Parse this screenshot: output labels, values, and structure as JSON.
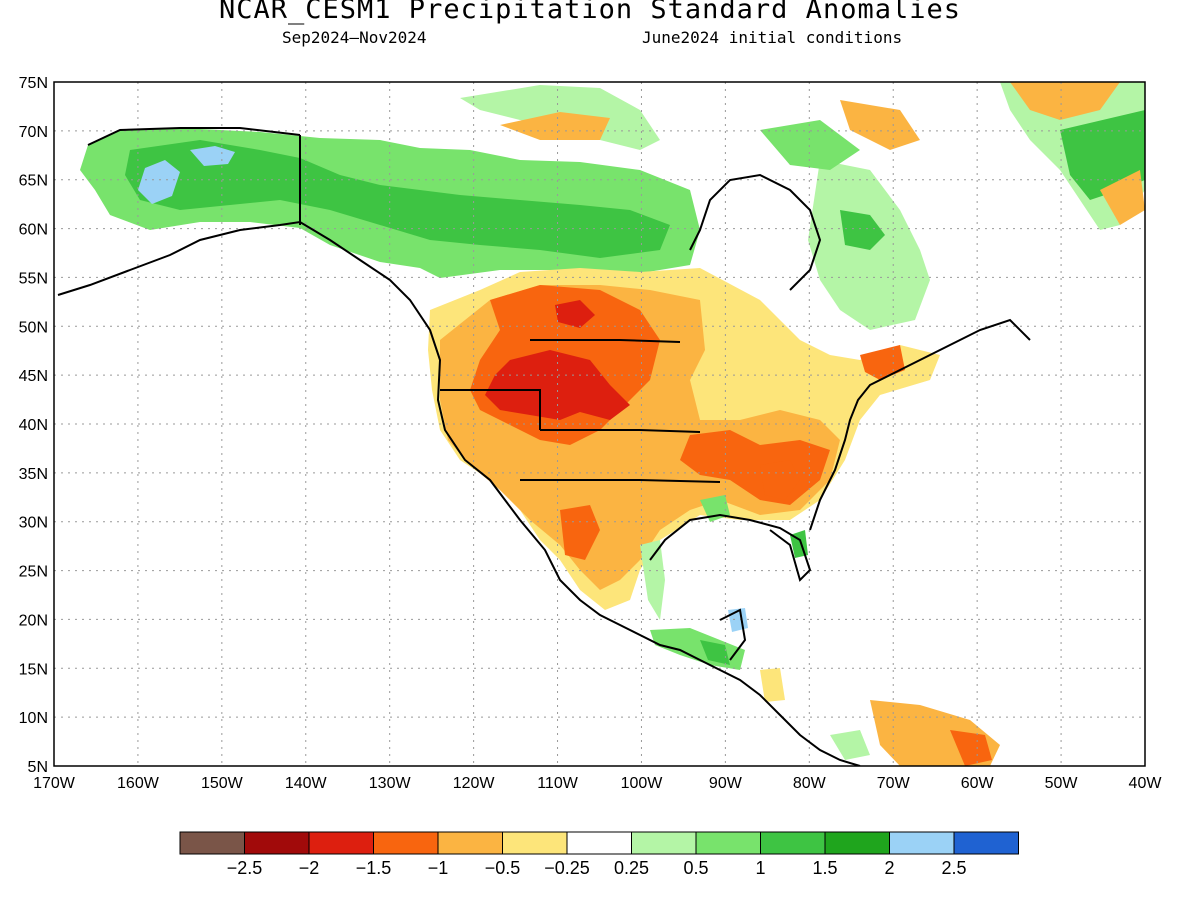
{
  "title": "NCAR_CESM1 Precipitation Standard Anomalies",
  "subtitle_left": "Sep2024—Nov2024",
  "subtitle_right": "June2024 initial conditions",
  "lat_labels": [
    "75N",
    "70N",
    "65N",
    "60N",
    "55N",
    "50N",
    "45N",
    "40N",
    "35N",
    "30N",
    "25N",
    "20N",
    "15N",
    "10N",
    "5N"
  ],
  "lon_labels": [
    "170W",
    "160W",
    "150W",
    "140W",
    "130W",
    "120W",
    "110W",
    "100W",
    "90W",
    "80W",
    "70W",
    "60W",
    "50W",
    "40W"
  ],
  "colorbar": {
    "colors": [
      "#7a5548",
      "#a10a0a",
      "#dd1f0f",
      "#f8650f",
      "#fbb442",
      "#fde57a",
      "#ffffff",
      "#b4f5a6",
      "#78e36c",
      "#3ec443",
      "#1fa51d",
      "#9bd2f6",
      "#1f62d2"
    ],
    "labels": [
      "−2.5",
      "−2",
      "−1.5",
      "−1",
      "−0.5",
      "−0.25",
      "0.25",
      "0.5",
      "1",
      "1.5",
      "2",
      "2.5"
    ]
  }
}
